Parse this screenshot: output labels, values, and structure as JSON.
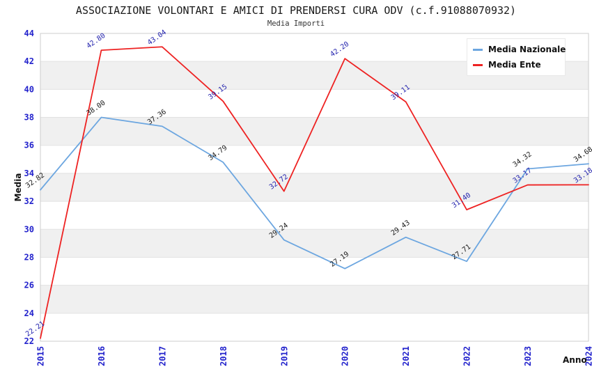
{
  "chart_data": {
    "type": "line",
    "title": "ASSOCIAZIONE VOLONTARI E AMICI DI PRENDERSI CURA ODV (c.f.91088070932)",
    "subtitle": "Media Importi",
    "xlabel": "Anno",
    "ylabel": "Media",
    "categories": [
      "2015",
      "2016",
      "2017",
      "2018",
      "2019",
      "2020",
      "2021",
      "2022",
      "2023",
      "2024"
    ],
    "ylim": [
      22,
      44
    ],
    "ytick_step": 2,
    "y_ticks": [
      22,
      24,
      26,
      28,
      30,
      32,
      34,
      36,
      38,
      40,
      42,
      44
    ],
    "grid": true,
    "legend_position": "top-right",
    "point_labels_visible": true,
    "series": [
      {
        "name": "Media Nazionale",
        "color": "#6CA6E0",
        "label_color": "#1a1a1a",
        "values": [
          32.82,
          38.0,
          37.36,
          34.79,
          29.24,
          27.19,
          29.43,
          27.71,
          34.32,
          34.68
        ]
      },
      {
        "name": "Media Ente",
        "color": "#EE2222",
        "label_color": "#2424AE",
        "values": [
          22.21,
          42.8,
          43.04,
          39.15,
          32.72,
          42.2,
          39.11,
          31.4,
          33.17,
          33.18
        ]
      }
    ],
    "axis_tick_color": "#2222CC",
    "band_color": "#F0F0F0",
    "grid_color": "#E2E2E2",
    "border_color": "#CCCCCC"
  }
}
